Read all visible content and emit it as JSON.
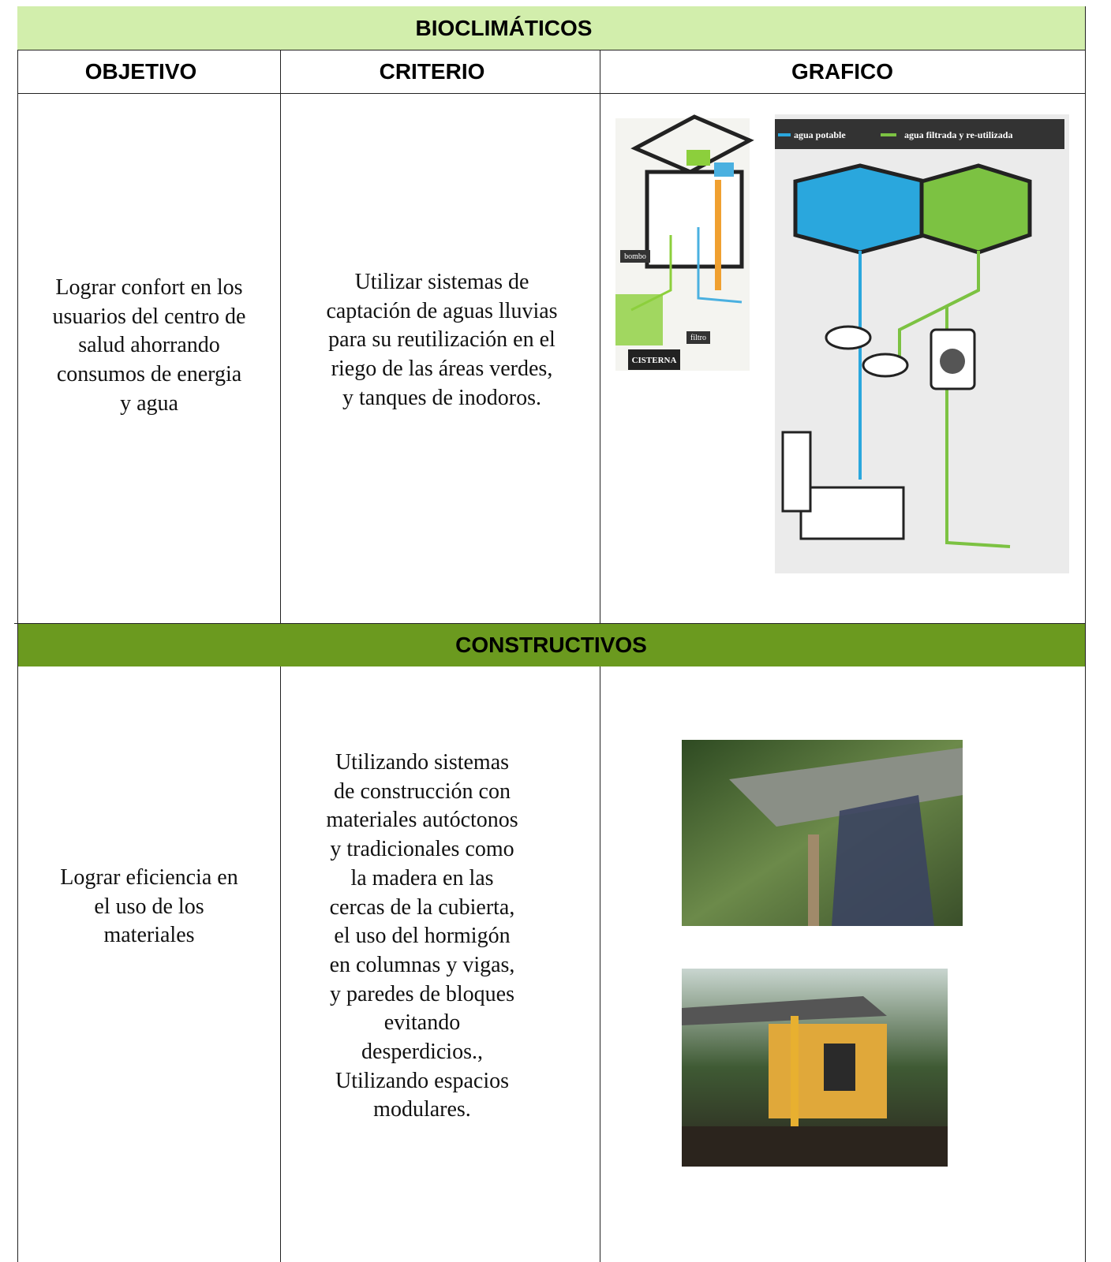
{
  "table": {
    "title": "BIOCLIMÁTICOS",
    "columns": [
      "OBJETIVO",
      "CRITERIO",
      "GRAFICO"
    ],
    "rows": [
      {
        "objetivo": [
          "Lograr confort en los",
          "usuarios del centro de",
          "salud ahorrando",
          "consumos de energia",
          "y agua"
        ],
        "criterio": [
          "Utilizar sistemas de",
          "captación de aguas lluvias",
          "para su reutilización en el",
          "riego de las áreas verdes,",
          "y tanques de inodoros."
        ],
        "figure": {
          "labels": [
            "bombo",
            "filtro",
            "CISTERNA"
          ],
          "legend": [
            "agua potable",
            "agua filtrada y re-utilizada"
          ]
        }
      }
    ],
    "section": "CONSTRUCTIVOS",
    "section_rows": [
      {
        "objetivo": [
          "Lograr eficiencia  en",
          "el uso de los",
          "materiales"
        ],
        "criterio": [
          "Utilizando sistemas",
          "de construcción con",
          "materiales autóctonos",
          "y tradicionales como",
          "la  madera en las",
          "cercas de la cubierta,",
          "el uso del hormigón",
          "en columnas y vigas,",
          "y paredes de bloques",
          "evitando",
          "desperdicios.,",
          "Utilizando espacios",
          "modulares."
        ]
      }
    ]
  }
}
